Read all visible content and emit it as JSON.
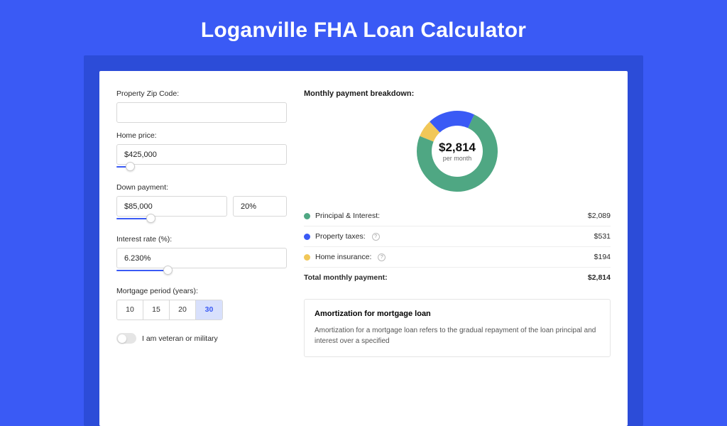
{
  "title": "Loganville FHA Loan Calculator",
  "colors": {
    "page_bg": "#3a5af5",
    "shadow_bg": "#2c4cd8",
    "panel_bg": "#ffffff",
    "slider_track": "#3a5af5",
    "period_active_bg": "#d8e0fc",
    "period_active_fg": "#3a5af5"
  },
  "form": {
    "zip_label": "Property Zip Code:",
    "zip_value": "",
    "home_price_label": "Home price:",
    "home_price_value": "$425,000",
    "home_price_slider_pct": 8,
    "down_label": "Down payment:",
    "down_value": "$85,000",
    "down_pct_value": "20%",
    "down_slider_pct": 20,
    "rate_label": "Interest rate (%):",
    "rate_value": "6.230%",
    "rate_slider_pct": 30,
    "period_label": "Mortgage period (years):",
    "periods": [
      "10",
      "15",
      "20",
      "30"
    ],
    "period_selected": "30",
    "veteran_label": "I am veteran or military",
    "veteran_on": false
  },
  "breakdown": {
    "title": "Monthly payment breakdown:",
    "donut": {
      "center_value": "$2,814",
      "center_sub": "per month",
      "slices": [
        {
          "label": "principal",
          "value": 2089,
          "color": "#4fa783",
          "deg": 267
        },
        {
          "label": "taxes",
          "value": 531,
          "color": "#3a5af5",
          "deg": 68
        },
        {
          "label": "insurance",
          "value": 194,
          "color": "#f1c758",
          "deg": 25
        }
      ]
    },
    "rows": [
      {
        "dot_color": "#4fa783",
        "label": "Principal & Interest:",
        "value": "$2,089",
        "help": false
      },
      {
        "dot_color": "#3a5af5",
        "label": "Property taxes:",
        "value": "$531",
        "help": true
      },
      {
        "dot_color": "#f1c758",
        "label": "Home insurance:",
        "value": "$194",
        "help": true
      }
    ],
    "total_label": "Total monthly payment:",
    "total_value": "$2,814"
  },
  "amortization": {
    "title": "Amortization for mortgage loan",
    "text": "Amortization for a mortgage loan refers to the gradual repayment of the loan principal and interest over a specified"
  }
}
